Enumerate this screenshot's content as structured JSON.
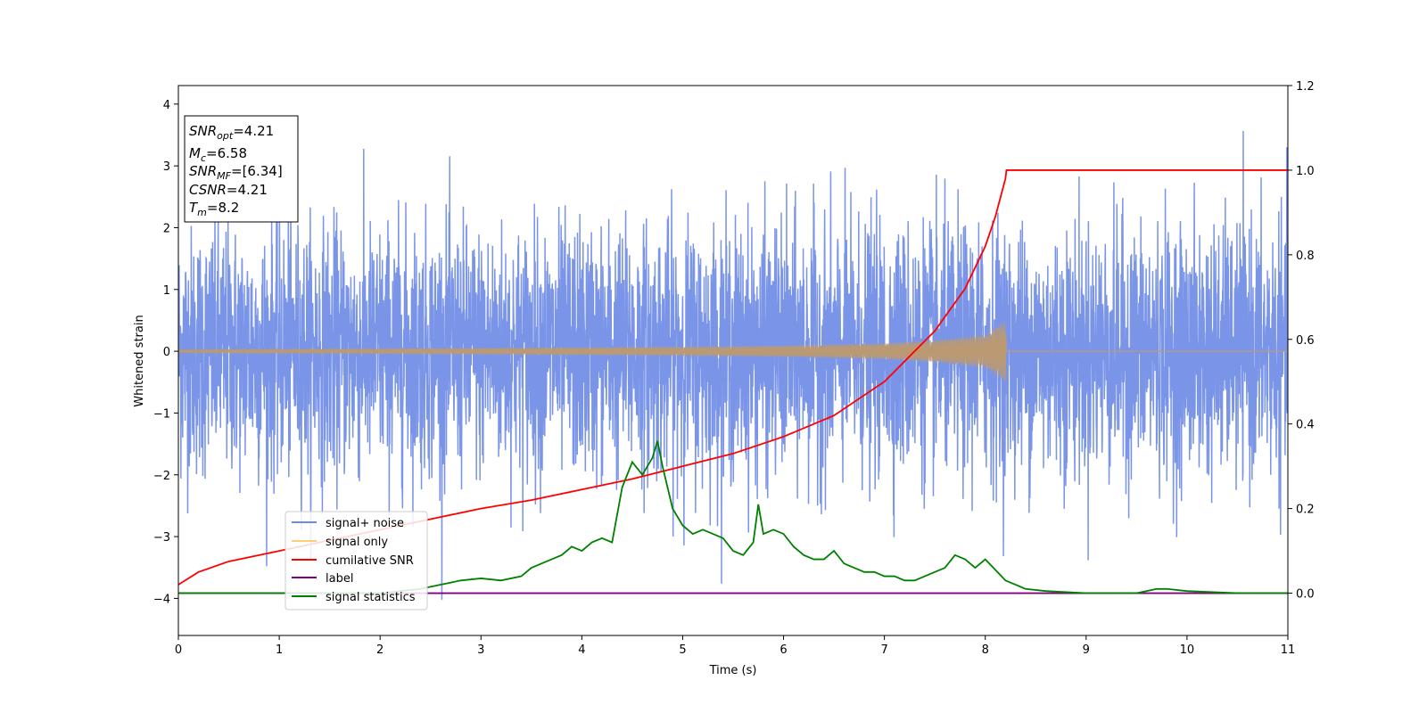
{
  "chart_data": {
    "type": "line",
    "xlabel": "Time (s)",
    "ylabel": "Whitened strain",
    "xlim": [
      0,
      11
    ],
    "ylim": [
      -4.6,
      4.3
    ],
    "y2lim": [
      -0.1,
      1.2
    ],
    "x_ticks": [
      0,
      1,
      2,
      3,
      4,
      5,
      6,
      7,
      8,
      9,
      10,
      11
    ],
    "x_tick_labels": [
      "0",
      "1",
      "2",
      "3",
      "4",
      "5",
      "6",
      "7",
      "8",
      "9",
      "10",
      "11"
    ],
    "y_ticks": [
      -4,
      -3,
      -2,
      -1,
      0,
      1,
      2,
      3,
      4
    ],
    "y_tick_labels": [
      "−4",
      "−3",
      "−2",
      "−1",
      "0",
      "1",
      "2",
      "3",
      "4"
    ],
    "y2_ticks": [
      0.0,
      0.2,
      0.4,
      0.6,
      0.8,
      1.0,
      1.2
    ],
    "y2_tick_labels": [
      "0.0",
      "0.2",
      "0.4",
      "0.6",
      "0.8",
      "1.0",
      "1.2"
    ],
    "grid": false,
    "legend_position": "lower-left",
    "colors": {
      "noise": "#6b8ae5",
      "signal": "#ffcc77",
      "signal_overlay": "#bb9a73",
      "cumulative": "#ff0000",
      "label": "#800080",
      "statistics": "#008000"
    },
    "info_box": {
      "snr_opt_name": "SNR",
      "snr_opt_sub": "opt",
      "snr_opt_value": "=4.21",
      "mc_name": "M",
      "mc_sub": "c",
      "mc_value": "=6.58",
      "snr_mf_name": "SNR",
      "snr_mf_sub": "MF",
      "snr_mf_value": "=[6.34]",
      "csnr_name": "CSNR",
      "csnr_value": "=4.21",
      "tm_name": "T",
      "tm_sub": "m",
      "tm_value": "=8.2"
    },
    "series": [
      {
        "name": "signal+ noise",
        "axis": "left",
        "color": "#6b8ae5",
        "noise_std": 1.0,
        "x_range": [
          0,
          11
        ]
      },
      {
        "name": "signal only",
        "axis": "left",
        "color": "#ffcc77",
        "envelope": {
          "x": [
            0,
            1,
            2,
            3,
            4,
            5,
            6,
            7,
            7.5,
            8.0,
            8.2,
            8.21,
            11
          ],
          "amplitude": [
            0.02,
            0.03,
            0.04,
            0.05,
            0.06,
            0.07,
            0.09,
            0.13,
            0.18,
            0.27,
            0.5,
            0.0,
            0.0
          ]
        }
      },
      {
        "name": "cumilative SNR",
        "axis": "right",
        "color": "#ff0000",
        "x": [
          0,
          0.2,
          0.5,
          1,
          1.5,
          2,
          2.5,
          3,
          3.5,
          4,
          4.5,
          5,
          5.5,
          6,
          6.5,
          7,
          7.5,
          7.8,
          8.0,
          8.1,
          8.2,
          8.21,
          11
        ],
        "y": [
          0.02,
          0.05,
          0.075,
          0.1,
          0.125,
          0.15,
          0.175,
          0.2,
          0.22,
          0.245,
          0.27,
          0.3,
          0.33,
          0.37,
          0.42,
          0.5,
          0.62,
          0.72,
          0.82,
          0.89,
          0.98,
          1.0,
          1.0
        ]
      },
      {
        "name": "label",
        "axis": "right",
        "color": "#800080",
        "x": [
          0,
          11
        ],
        "y": [
          0.0,
          0.0
        ]
      },
      {
        "name": "signal statistics",
        "axis": "right",
        "color": "#008000",
        "x": [
          0,
          1,
          2,
          2.4,
          2.6,
          2.8,
          3.0,
          3.2,
          3.4,
          3.5,
          3.6,
          3.7,
          3.8,
          3.9,
          4.0,
          4.1,
          4.2,
          4.3,
          4.4,
          4.5,
          4.6,
          4.7,
          4.75,
          4.8,
          4.9,
          5.0,
          5.1,
          5.2,
          5.3,
          5.4,
          5.5,
          5.6,
          5.7,
          5.75,
          5.8,
          5.9,
          6.0,
          6.1,
          6.2,
          6.3,
          6.4,
          6.5,
          6.6,
          6.7,
          6.8,
          6.9,
          7.0,
          7.1,
          7.2,
          7.3,
          7.4,
          7.5,
          7.6,
          7.7,
          7.8,
          7.9,
          8.0,
          8.2,
          8.4,
          8.6,
          9.0,
          9.5,
          9.7,
          9.8,
          10,
          10.5,
          11
        ],
        "y": [
          0.0,
          0.0,
          0.0,
          0.01,
          0.02,
          0.03,
          0.035,
          0.03,
          0.04,
          0.06,
          0.07,
          0.08,
          0.09,
          0.11,
          0.1,
          0.12,
          0.13,
          0.12,
          0.25,
          0.31,
          0.28,
          0.32,
          0.36,
          0.3,
          0.2,
          0.16,
          0.14,
          0.15,
          0.14,
          0.13,
          0.1,
          0.09,
          0.12,
          0.21,
          0.14,
          0.15,
          0.14,
          0.11,
          0.09,
          0.08,
          0.08,
          0.1,
          0.07,
          0.06,
          0.05,
          0.05,
          0.04,
          0.04,
          0.03,
          0.03,
          0.04,
          0.05,
          0.06,
          0.09,
          0.08,
          0.06,
          0.08,
          0.03,
          0.01,
          0.005,
          0.0,
          0.0,
          0.01,
          0.01,
          0.005,
          0.0,
          0.0
        ]
      }
    ]
  }
}
